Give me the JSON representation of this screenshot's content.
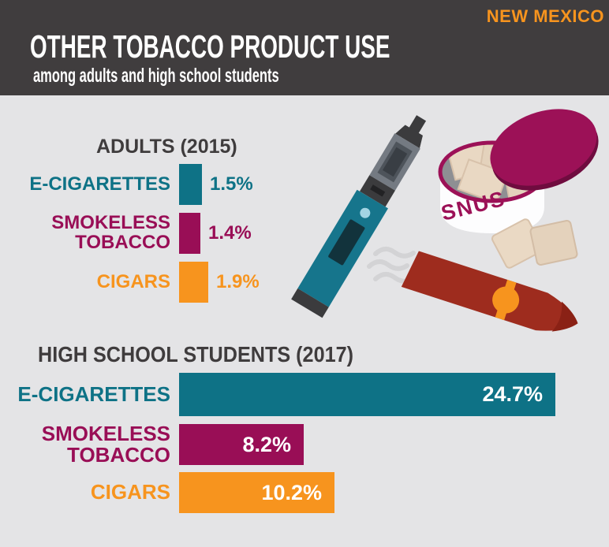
{
  "badge": "NEW MEXICO",
  "header": {
    "title": "OTHER TOBACCO PRODUCT USE",
    "subtitle": "among adults and high school students"
  },
  "colors": {
    "header_bg": "#403d3e",
    "page_bg": "#e4e4e6",
    "teal": "#0e7286",
    "maroon": "#990e56",
    "orange": "#f7941e",
    "heading_text": "#3f3c3d",
    "badge_text": "#f7941e",
    "bar_value_inside_text": "#ffffff"
  },
  "adults_chart": {
    "heading": "ADULTS (2015)",
    "rows": [
      {
        "label_lines": [
          "E-CIGARETTES"
        ],
        "value": 1.5,
        "value_label": "1.5%",
        "color": "#0e7286"
      },
      {
        "label_lines": [
          "SMOKELESS",
          "TOBACCO"
        ],
        "value": 1.4,
        "value_label": "1.4%",
        "color": "#990e56"
      },
      {
        "label_lines": [
          "CIGARS"
        ],
        "value": 1.9,
        "value_label": "1.9%",
        "color": "#f7941e"
      }
    ]
  },
  "hs_chart": {
    "heading": "HIGH SCHOOL STUDENTS (2017)",
    "rows": [
      {
        "label_lines": [
          "E-CIGARETTES"
        ],
        "value": 24.7,
        "value_label": "24.7%",
        "color": "#0e7286"
      },
      {
        "label_lines": [
          "SMOKELESS",
          "TOBACCO"
        ],
        "value": 8.2,
        "value_label": "8.2%",
        "color": "#990e56"
      },
      {
        "label_lines": [
          "CIGARS"
        ],
        "value": 10.2,
        "value_label": "10.2%",
        "color": "#f7941e"
      }
    ]
  },
  "illustration": {
    "snus_label": "SNUS"
  },
  "chart_data": [
    {
      "type": "bar",
      "orientation": "horizontal",
      "title": "ADULTS (2015)",
      "categories": [
        "E-CIGARETTES",
        "SMOKELESS TOBACCO",
        "CIGARS"
      ],
      "values": [
        1.5,
        1.4,
        1.9
      ],
      "unit": "%",
      "data_labels": [
        "1.5%",
        "1.4%",
        "1.9%"
      ],
      "bar_colors": [
        "#0e7286",
        "#990e56",
        "#f7941e"
      ],
      "xlabel": "",
      "ylabel": "",
      "xlim": [
        0,
        24.7
      ],
      "grid": false,
      "legend": false,
      "value_label_position": "outside-right"
    },
    {
      "type": "bar",
      "orientation": "horizontal",
      "title": "HIGH SCHOOL STUDENTS (2017)",
      "categories": [
        "E-CIGARETTES",
        "SMOKELESS TOBACCO",
        "CIGARS"
      ],
      "values": [
        24.7,
        8.2,
        10.2
      ],
      "unit": "%",
      "data_labels": [
        "24.7%",
        "8.2%",
        "10.2%"
      ],
      "bar_colors": [
        "#0e7286",
        "#990e56",
        "#f7941e"
      ],
      "xlabel": "",
      "ylabel": "",
      "xlim": [
        0,
        24.7
      ],
      "grid": false,
      "legend": false,
      "value_label_position": "inside-right"
    }
  ]
}
